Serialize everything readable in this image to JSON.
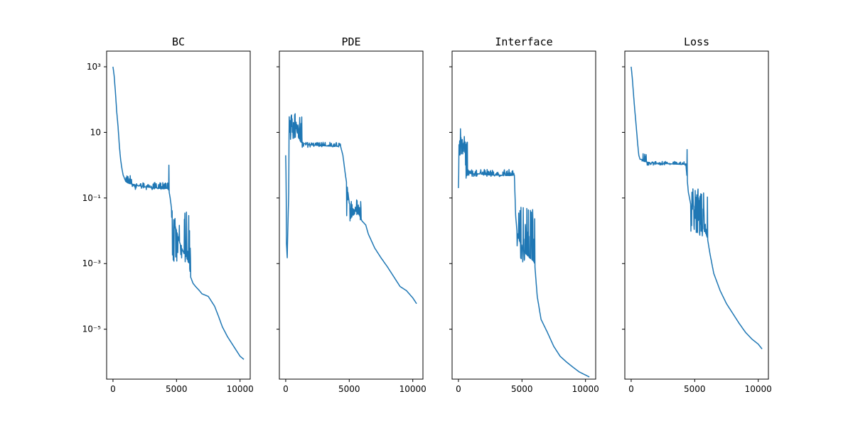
{
  "chart_data": [
    {
      "type": "line",
      "title": "BC",
      "xlabel": "",
      "ylabel": "",
      "yscale": "log",
      "xlim": [
        -500,
        10800
      ],
      "ylim": [
        3e-07,
        3000
      ],
      "xticks": [
        0,
        5000,
        10000
      ],
      "xtick_labels": [
        "0",
        "5000",
        "10000"
      ],
      "yticks": [
        1000,
        10,
        0.1,
        0.001,
        1e-05
      ],
      "ytick_labels": [
        "10³",
        "10",
        "10⁻¹",
        "10⁻³",
        "10⁻⁵"
      ],
      "grid": false,
      "series": [
        {
          "color": "#1f77b4",
          "x": [
            0,
            100,
            200,
            300,
            400,
            500,
            600,
            700,
            800,
            900,
            1000,
            1100,
            1200,
            1400,
            1600,
            1800,
            2000,
            2500,
            3000,
            3500,
            4000,
            4300,
            4400,
            4500,
            4600,
            4800,
            5000,
            5200,
            5400,
            5600,
            5800,
            6000,
            6100,
            6300,
            6500,
            6800,
            7000,
            7500,
            8000,
            8300,
            8600,
            9000,
            9500,
            10000,
            10300
          ],
          "y": [
            1000,
            500,
            150,
            40,
            15,
            4,
            1.5,
            0.8,
            0.5,
            0.4,
            0.32,
            0.3,
            0.28,
            0.27,
            0.26,
            0.25,
            0.24,
            0.22,
            0.21,
            0.2,
            0.19,
            0.2,
            0.17,
            0.1,
            0.05,
            0.02,
            0.01,
            0.005,
            0.003,
            0.002,
            0.0015,
            0.001,
            0.0004,
            0.00025,
            0.0002,
            0.00015,
            0.00012,
            0.0001,
            5e-05,
            2.5e-05,
            1.2e-05,
            6e-06,
            3e-06,
            1.5e-06,
            1.2e-06
          ],
          "noise": [
            {
              "from": 1000,
              "to": 1500,
              "lo": 0.3,
              "hi": 0.5
            },
            {
              "from": 1500,
              "to": 4400,
              "lo": 0.18,
              "hi": 0.3
            },
            {
              "at": 4400,
              "hi": 1.0
            },
            {
              "from": 4600,
              "to": 6100,
              "lo": 0.001,
              "hi": 0.05
            }
          ]
        }
      ]
    },
    {
      "type": "line",
      "title": "PDE",
      "xlabel": "",
      "ylabel": "",
      "yscale": "log",
      "xlim": [
        -500,
        10800
      ],
      "ylim": [
        3e-07,
        3000
      ],
      "xticks": [
        0,
        5000,
        10000
      ],
      "xtick_labels": [
        "0",
        "5000",
        "10000"
      ],
      "grid": false,
      "series": [
        {
          "color": "#1f77b4",
          "x": [
            0,
            30,
            60,
            120,
            180,
            240,
            300,
            350,
            400,
            450,
            500,
            600,
            800,
            1000,
            1100,
            1200,
            1500,
            2000,
            2500,
            3000,
            3500,
            4000,
            4300,
            4500,
            4700,
            4900,
            5000,
            5200,
            5500,
            5800,
            6000,
            6300,
            6500,
            7000,
            7500,
            8000,
            8500,
            9000,
            9500,
            10000,
            10300
          ],
          "y": [
            2,
            0.4,
            0.004,
            0.0015,
            0.02,
            0.15,
            8,
            14,
            25,
            35,
            30,
            20,
            15,
            7,
            6,
            5,
            4.5,
            4.2,
            4.0,
            3.9,
            3.8,
            3.7,
            4.0,
            2.0,
            0.5,
            0.15,
            0.07,
            0.05,
            0.04,
            0.03,
            0.02,
            0.015,
            0.008,
            0.003,
            0.0015,
            0.0008,
            0.0004,
            0.0002,
            0.00015,
            9e-05,
            6e-05
          ],
          "noise": [
            {
              "from": 250,
              "to": 1300,
              "lo": 6,
              "hi": 40
            },
            {
              "from": 1300,
              "to": 4300,
              "lo": 3.5,
              "hi": 5
            },
            {
              "from": 4800,
              "to": 6000,
              "lo": 0.02,
              "hi": 0.1
            }
          ]
        }
      ]
    },
    {
      "type": "line",
      "title": "Interface",
      "xlabel": "",
      "ylabel": "",
      "yscale": "log",
      "xlim": [
        -500,
        10800
      ],
      "ylim": [
        3e-07,
        3000
      ],
      "xticks": [
        0,
        5000,
        10000
      ],
      "xtick_labels": [
        "0",
        "5000",
        "10000"
      ],
      "grid": false,
      "series": [
        {
          "color": "#1f77b4",
          "x": [
            0,
            50,
            100,
            150,
            200,
            300,
            400,
            500,
            600,
            700,
            1000,
            1500,
            2000,
            2500,
            3000,
            3500,
            4000,
            4400,
            4500,
            4600,
            4800,
            5000,
            5300,
            5600,
            5900,
            6000,
            6200,
            6500,
            7000,
            7500,
            8000,
            8500,
            9000,
            9500,
            10000,
            10300
          ],
          "y": [
            0.2,
            2,
            5,
            15,
            7,
            3,
            5,
            4,
            0.4,
            0.6,
            0.55,
            0.55,
            0.52,
            0.5,
            0.5,
            0.49,
            0.48,
            0.5,
            0.03,
            0.01,
            0.005,
            0.003,
            0.002,
            0.0015,
            0.0012,
            0.001,
            0.0001,
            2e-05,
            8e-06,
            3e-06,
            1.5e-06,
            1e-06,
            7e-07,
            5e-07,
            4e-07,
            3.5e-07
          ],
          "noise": [
            {
              "from": 0,
              "to": 700,
              "lo": 2,
              "hi": 8
            },
            {
              "from": 700,
              "to": 4400,
              "lo": 0.45,
              "hi": 0.75
            },
            {
              "from": 4600,
              "to": 6000,
              "lo": 0.001,
              "hi": 0.06
            }
          ]
        }
      ]
    },
    {
      "type": "line",
      "title": "Loss",
      "xlabel": "",
      "ylabel": "",
      "yscale": "log",
      "xlim": [
        -500,
        10800
      ],
      "ylim": [
        3e-07,
        3000
      ],
      "xticks": [
        0,
        5000,
        10000
      ],
      "xtick_labels": [
        "0",
        "5000",
        "10000"
      ],
      "grid": false,
      "series": [
        {
          "color": "#1f77b4",
          "x": [
            0,
            100,
            200,
            300,
            400,
            500,
            600,
            700,
            800,
            1000,
            1200,
            1500,
            2000,
            2500,
            3000,
            3500,
            4000,
            4300,
            4400,
            4500,
            4700,
            5000,
            5300,
            5600,
            5900,
            6000,
            6200,
            6500,
            7000,
            7500,
            8000,
            8500,
            9000,
            9500,
            10000,
            10300
          ],
          "y": [
            1000,
            400,
            120,
            40,
            15,
            5,
            2,
            1.5,
            1.5,
            1.3,
            1.25,
            1.2,
            1.15,
            1.12,
            1.1,
            1.08,
            1.05,
            1.1,
            0.4,
            0.15,
            0.06,
            0.03,
            0.02,
            0.012,
            0.008,
            0.006,
            0.002,
            0.0005,
            0.00015,
            6e-05,
            3e-05,
            1.5e-05,
            8e-06,
            5e-06,
            3.5e-06,
            2.5e-06
          ],
          "noise": [
            {
              "from": 800,
              "to": 1200,
              "lo": 1.3,
              "hi": 2.5
            },
            {
              "from": 1200,
              "to": 4300,
              "lo": 1.0,
              "hi": 1.3
            },
            {
              "at": 4400,
              "hi": 3.0
            },
            {
              "from": 4700,
              "to": 6000,
              "lo": 0.006,
              "hi": 0.2
            }
          ]
        }
      ]
    }
  ]
}
